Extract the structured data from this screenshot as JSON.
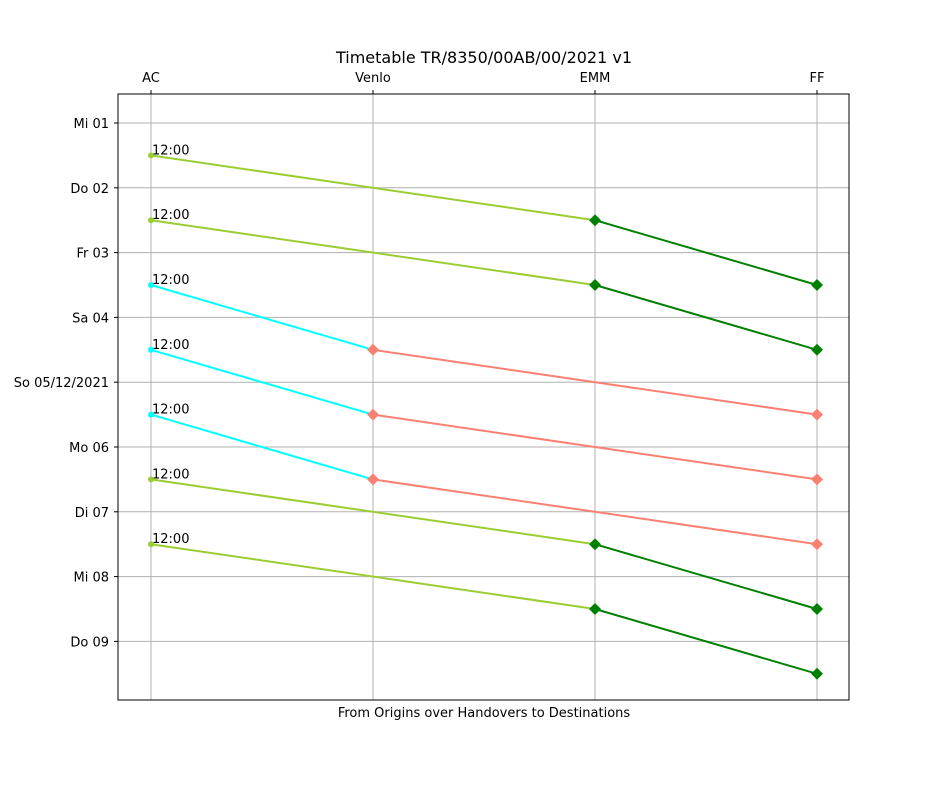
{
  "chart_data": {
    "type": "line",
    "title": "Timetable TR/8350/00AB/00/2021 v1",
    "xlabel": "From Origins over Handovers to Destinations",
    "ylabel": "",
    "categories": [
      "AC",
      "Venlo",
      "EMM",
      "FF"
    ],
    "y_tick_labels": [
      "Mi 01",
      "Do 02",
      "Fr 03",
      "Sa 04",
      "So 05/12/2021",
      "Mo 06",
      "Di 07",
      "Mi 08",
      "Do 09"
    ],
    "ylim": [
      "2021-12-09 18:00",
      "2021-12-01 00:00"
    ],
    "y_axis_inverted": true,
    "grid": true,
    "colors": {
      "origin_to_emm": "#9acd32",
      "emm_to_ff": "#008000",
      "origin_to_venlo": "#00ffff",
      "venlo_to_ff": "#fa8072"
    },
    "series": [
      {
        "route": [
          "AC",
          "EMM",
          "FF"
        ],
        "times": [
          "2021-12-01 12:00",
          "2021-12-02 12:00",
          "2021-12-03 12:00"
        ],
        "label": "12:00"
      },
      {
        "route": [
          "AC",
          "EMM",
          "FF"
        ],
        "times": [
          "2021-12-02 12:00",
          "2021-12-03 12:00",
          "2021-12-04 12:00"
        ],
        "label": "12:00"
      },
      {
        "route": [
          "AC",
          "Venlo",
          "FF"
        ],
        "times": [
          "2021-12-03 12:00",
          "2021-12-04 12:00",
          "2021-12-05 12:00"
        ],
        "label": "12:00"
      },
      {
        "route": [
          "AC",
          "Venlo",
          "FF"
        ],
        "times": [
          "2021-12-04 12:00",
          "2021-12-05 12:00",
          "2021-12-06 12:00"
        ],
        "label": "12:00"
      },
      {
        "route": [
          "AC",
          "Venlo",
          "FF"
        ],
        "times": [
          "2021-12-05 12:00",
          "2021-12-06 12:00",
          "2021-12-07 12:00"
        ],
        "label": "12:00"
      },
      {
        "route": [
          "AC",
          "EMM",
          "FF"
        ],
        "times": [
          "2021-12-06 12:00",
          "2021-12-07 12:00",
          "2021-12-08 12:00"
        ],
        "label": "12:00"
      },
      {
        "route": [
          "AC",
          "EMM",
          "FF"
        ],
        "times": [
          "2021-12-07 12:00",
          "2021-12-08 12:00",
          "2021-12-09 12:00"
        ],
        "label": "12:00"
      }
    ]
  }
}
